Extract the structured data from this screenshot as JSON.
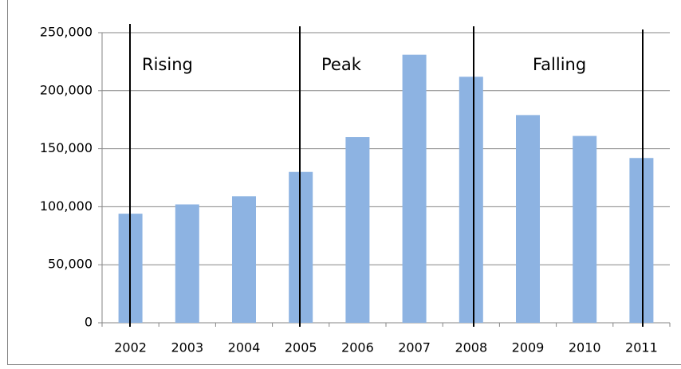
{
  "chart_data": {
    "type": "bar",
    "categories": [
      "2002",
      "2003",
      "2004",
      "2005",
      "2006",
      "2007",
      "2008",
      "2009",
      "2010",
      "2011"
    ],
    "values": [
      94000,
      102000,
      109000,
      130000,
      160000,
      231000,
      212000,
      179000,
      161000,
      142000
    ],
    "color": "#8db3e2",
    "ylim": [
      0,
      250000
    ],
    "yticks": [
      0,
      {
        "value": 50000,
        "label": "50,000"
      },
      {
        "value": 100000,
        "label": "100,000"
      },
      {
        "value": 150000,
        "label": "150,000"
      },
      {
        "value": 200000,
        "label": "200,000"
      },
      {
        "value": 250000,
        "label": "250,000"
      }
    ],
    "grid": true,
    "annotations": [
      "Rising",
      "Peak",
      "Falling"
    ]
  }
}
